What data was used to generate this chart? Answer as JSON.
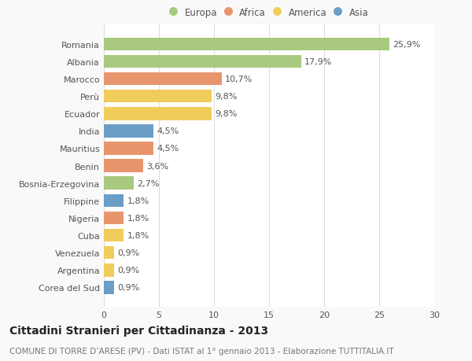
{
  "categories": [
    "Corea del Sud",
    "Argentina",
    "Venezuela",
    "Cuba",
    "Nigeria",
    "Filippine",
    "Bosnia-Erzegovina",
    "Benin",
    "Mauritius",
    "India",
    "Ecuador",
    "Perù",
    "Marocco",
    "Albania",
    "Romania"
  ],
  "values": [
    0.9,
    0.9,
    0.9,
    1.8,
    1.8,
    1.8,
    2.7,
    3.6,
    4.5,
    4.5,
    9.8,
    9.8,
    10.7,
    17.9,
    25.9
  ],
  "labels": [
    "0,9%",
    "0,9%",
    "0,9%",
    "1,8%",
    "1,8%",
    "1,8%",
    "2,7%",
    "3,6%",
    "4,5%",
    "4,5%",
    "9,8%",
    "9,8%",
    "10,7%",
    "17,9%",
    "25,9%"
  ],
  "colors": [
    "#6b9ec7",
    "#f0cc5a",
    "#f0cc5a",
    "#f0cc5a",
    "#e8956e",
    "#6b9ec7",
    "#a8c97f",
    "#e8956e",
    "#e8956e",
    "#6b9ec7",
    "#f0cc5a",
    "#f0cc5a",
    "#e8956e",
    "#a8c97f",
    "#a8c97f"
  ],
  "legend_labels": [
    "Europa",
    "Africa",
    "America",
    "Asia"
  ],
  "legend_colors": [
    "#a8c97f",
    "#e8956e",
    "#f0cc5a",
    "#6b9ec7"
  ],
  "title": "Cittadini Stranieri per Cittadinanza - 2013",
  "subtitle": "COMUNE DI TORRE D’ARESE (PV) - Dati ISTAT al 1° gennaio 2013 - Elaborazione TUTTITALIA.IT",
  "xlim": [
    0,
    30
  ],
  "xticks": [
    0,
    5,
    10,
    15,
    20,
    25,
    30
  ],
  "background_color": "#f9f9f9",
  "plot_bg_color": "#ffffff",
  "grid_color": "#dddddd",
  "text_color": "#555555",
  "title_color": "#222222",
  "subtitle_color": "#777777",
  "bar_height": 0.75,
  "label_fontsize": 8,
  "tick_fontsize": 8,
  "title_fontsize": 10,
  "subtitle_fontsize": 7.5
}
